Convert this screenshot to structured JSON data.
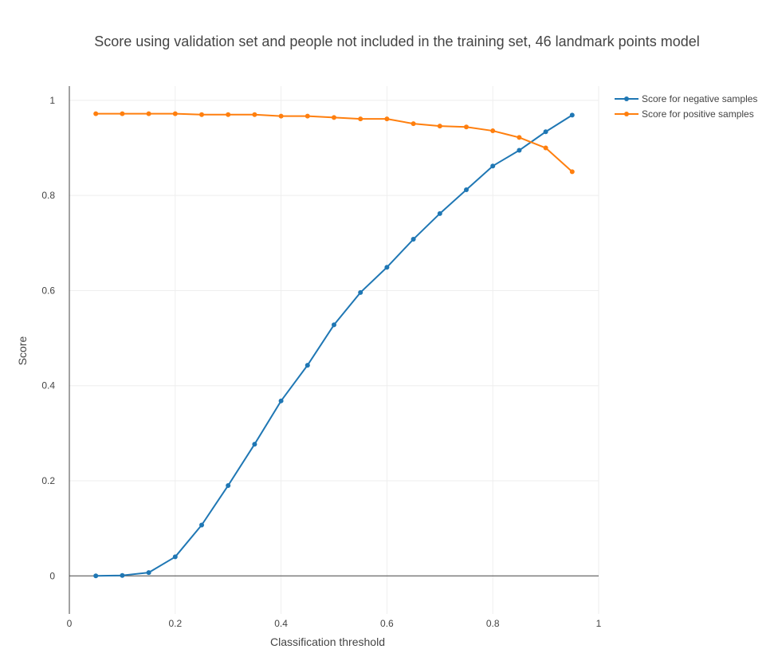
{
  "chart_data": {
    "type": "line",
    "title": "Score using validation set and people not included in the training set, 46 landmark points model",
    "xlabel": "Classification threshold",
    "ylabel": "Score",
    "xlim": [
      0,
      1
    ],
    "ylim": [
      -0.08,
      1.03
    ],
    "xticks": [
      0,
      0.2,
      0.4,
      0.6,
      0.8,
      1
    ],
    "xtick_labels": [
      "0",
      "0.2",
      "0.4",
      "0.6",
      "0.8",
      "1"
    ],
    "yticks": [
      0,
      0.2,
      0.4,
      0.6,
      0.8,
      1
    ],
    "ytick_labels": [
      "0",
      "0.2",
      "0.4",
      "0.6",
      "0.8",
      "1"
    ],
    "grid": true,
    "legend_position": "top-right",
    "x": [
      0.05,
      0.1,
      0.15,
      0.2,
      0.25,
      0.3,
      0.35,
      0.4,
      0.45,
      0.5,
      0.55,
      0.6,
      0.65,
      0.7,
      0.75,
      0.8,
      0.85,
      0.9,
      0.95
    ],
    "series": [
      {
        "name": "Score for negative samples",
        "color": "#1f77b4",
        "values": [
          0.0,
          0.001,
          0.007,
          0.04,
          0.107,
          0.19,
          0.277,
          0.368,
          0.443,
          0.528,
          0.596,
          0.649,
          0.708,
          0.762,
          0.812,
          0.862,
          0.895,
          0.934,
          0.969
        ]
      },
      {
        "name": "Score for positive samples",
        "color": "#ff7f0e",
        "values": [
          0.972,
          0.972,
          0.972,
          0.972,
          0.97,
          0.97,
          0.97,
          0.967,
          0.967,
          0.964,
          0.961,
          0.961,
          0.951,
          0.946,
          0.944,
          0.936,
          0.922,
          0.9,
          0.85
        ]
      }
    ]
  }
}
